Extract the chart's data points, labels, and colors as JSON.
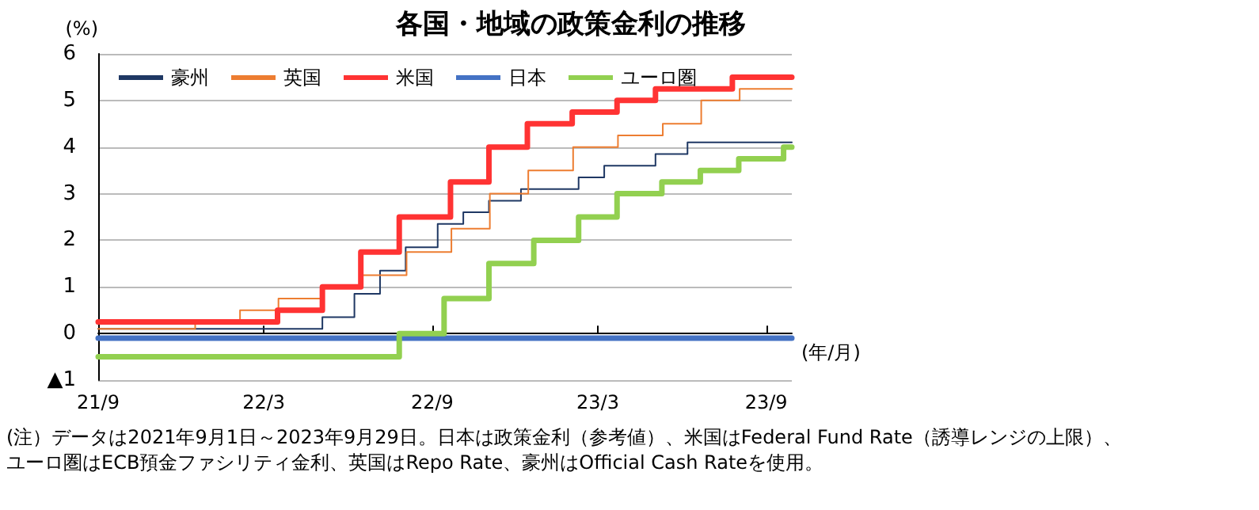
{
  "chart_data": {
    "type": "step",
    "title": "各国・地域の政策金利の推移",
    "ylabel": "(%)",
    "xlabel": "(年/月)",
    "xlim": [
      "2021-09-01",
      "2023-09-29"
    ],
    "xticks": [
      {
        "value": "2021-09-01",
        "label": "21/9"
      },
      {
        "value": "2022-03-01",
        "label": "22/3"
      },
      {
        "value": "2022-09-01",
        "label": "22/9"
      },
      {
        "value": "2023-03-01",
        "label": "23/3"
      },
      {
        "value": "2023-09-01",
        "label": "23/9"
      }
    ],
    "ylim": [
      -1,
      6
    ],
    "yticks": [
      {
        "value": -1,
        "label": "▲1"
      },
      0,
      1,
      2,
      3,
      4,
      5,
      6
    ],
    "grid": "y",
    "legend": "top",
    "marker": "none",
    "line_style": "solid",
    "series": [
      {
        "name": "豪州",
        "color": "#1f3864",
        "x": [
          "2021-09-01",
          "2022-05-04",
          "2022-06-08",
          "2022-07-06",
          "2022-08-03",
          "2022-09-07",
          "2022-10-05",
          "2022-11-02",
          "2022-12-07",
          "2023-02-08",
          "2023-03-08",
          "2023-05-03",
          "2023-06-07",
          "2023-09-29"
        ],
        "values": [
          0.1,
          0.35,
          0.85,
          1.35,
          1.85,
          2.35,
          2.6,
          2.85,
          3.1,
          3.35,
          3.6,
          3.85,
          4.1,
          4.1
        ]
      },
      {
        "name": "英国",
        "color": "#ed7d31",
        "x": [
          "2021-09-01",
          "2021-12-16",
          "2022-02-03",
          "2022-03-17",
          "2022-05-05",
          "2022-06-16",
          "2022-08-04",
          "2022-09-22",
          "2022-11-03",
          "2022-12-15",
          "2023-02-02",
          "2023-03-23",
          "2023-05-11",
          "2023-06-22",
          "2023-08-03",
          "2023-09-29"
        ],
        "values": [
          0.1,
          0.25,
          0.5,
          0.75,
          1.0,
          1.25,
          1.75,
          2.25,
          3.0,
          3.5,
          4.0,
          4.25,
          4.5,
          5.0,
          5.25,
          5.25
        ]
      },
      {
        "name": "米国",
        "color": "#ff3333",
        "x": [
          "2021-09-01",
          "2022-03-16",
          "2022-05-04",
          "2022-06-15",
          "2022-07-27",
          "2022-09-21",
          "2022-11-02",
          "2022-12-14",
          "2023-02-01",
          "2023-03-22",
          "2023-05-03",
          "2023-07-26",
          "2023-09-29"
        ],
        "values": [
          0.25,
          0.5,
          1.0,
          1.75,
          2.5,
          3.25,
          4.0,
          4.5,
          4.75,
          5.0,
          5.25,
          5.5,
          5.5
        ]
      },
      {
        "name": "日本",
        "color": "#4472c4",
        "x": [
          "2021-09-01",
          "2023-09-29"
        ],
        "values": [
          -0.1,
          -0.1
        ]
      },
      {
        "name": "ユーロ圏",
        "color": "#92d050",
        "x": [
          "2021-09-01",
          "2022-07-27",
          "2022-09-14",
          "2022-11-02",
          "2022-12-21",
          "2023-02-08",
          "2023-03-22",
          "2023-05-10",
          "2023-06-21",
          "2023-08-02",
          "2023-09-20",
          "2023-09-29"
        ],
        "values": [
          -0.5,
          0.0,
          0.75,
          1.5,
          2.0,
          2.5,
          3.0,
          3.25,
          3.5,
          3.75,
          4.0,
          4.0
        ]
      }
    ],
    "annotations": [
      "(注）データは2021年9月1日～2023年9月29日。日本は政策金利（参考値）、米国はFederal Fund Rate（誘導レンジの上限）、",
      "ユーロ圏はECB預金ファシリティ金利、英国はRepo Rate、豪州はOfficial Cash Rateを使用。"
    ]
  }
}
